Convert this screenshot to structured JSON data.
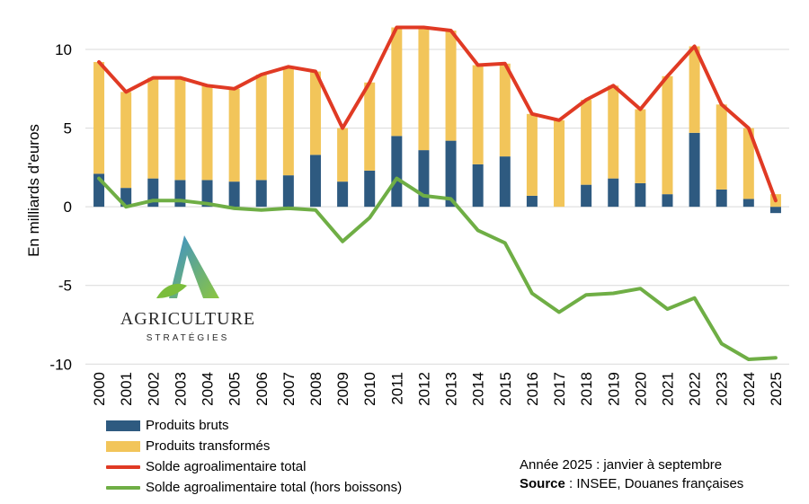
{
  "chart_data": {
    "type": "bar",
    "ylabel": "En milliards d'euros",
    "ylim": [
      -10,
      12
    ],
    "yticks": [
      10,
      5,
      0,
      -5,
      -10
    ],
    "ytick_labels": [
      "10",
      "5",
      "0",
      "-5",
      "-10"
    ],
    "grid": "horizontal",
    "stacked": true,
    "categories": [
      "2000",
      "2001",
      "2002",
      "2003",
      "2004",
      "2005",
      "2006",
      "2007",
      "2008",
      "2009",
      "2010",
      "2011",
      "2012",
      "2013",
      "2014",
      "2015",
      "2016",
      "2017",
      "2018",
      "2019",
      "2020",
      "2021",
      "2022",
      "2023",
      "2024",
      "2025"
    ],
    "series": [
      {
        "name": "Produits bruts",
        "kind": "bar",
        "color": "#2e5a80",
        "values": [
          2.1,
          1.2,
          1.8,
          1.7,
          1.7,
          1.6,
          1.7,
          2.0,
          3.3,
          1.6,
          2.3,
          4.5,
          3.6,
          4.2,
          2.7,
          3.2,
          0.7,
          0.0,
          1.4,
          1.8,
          1.5,
          0.8,
          4.7,
          1.1,
          0.5,
          -0.4
        ]
      },
      {
        "name": "Produits transformés",
        "kind": "bar",
        "color": "#f2c55a",
        "values": [
          7.1,
          6.1,
          6.4,
          6.5,
          6.0,
          5.9,
          6.7,
          6.9,
          5.3,
          3.4,
          5.6,
          6.9,
          7.8,
          7.0,
          6.3,
          5.9,
          5.2,
          5.5,
          5.4,
          5.9,
          4.7,
          7.5,
          5.5,
          5.4,
          4.5,
          0.8
        ]
      },
      {
        "name": "Solde agroalimentaire total",
        "kind": "line",
        "color": "#e03a24",
        "values": [
          9.2,
          7.3,
          8.2,
          8.2,
          7.7,
          7.5,
          8.4,
          8.9,
          8.6,
          5.0,
          7.9,
          11.4,
          11.4,
          11.2,
          9.0,
          9.1,
          5.9,
          5.5,
          6.8,
          7.7,
          6.2,
          8.3,
          10.2,
          6.5,
          5.0,
          0.4
        ]
      },
      {
        "name": "Solde agroalimentaire total (hors boissons)",
        "kind": "line",
        "color": "#6fae45",
        "values": [
          1.8,
          0.0,
          0.4,
          0.4,
          0.2,
          -0.1,
          -0.2,
          -0.1,
          -0.2,
          -2.2,
          -0.7,
          1.8,
          0.7,
          0.5,
          -1.5,
          -2.3,
          -5.5,
          -6.7,
          -5.6,
          -5.5,
          -5.2,
          -6.5,
          -5.8,
          -8.7,
          -9.7,
          -9.6
        ]
      }
    ]
  },
  "logo": {
    "word": "AGRICULTURE",
    "sub": "STRATÉGIES"
  },
  "note": {
    "line1": "Année 2025 : janvier à septembre",
    "source_label": "Source",
    "source_text": " : INSEE, Douanes françaises"
  }
}
